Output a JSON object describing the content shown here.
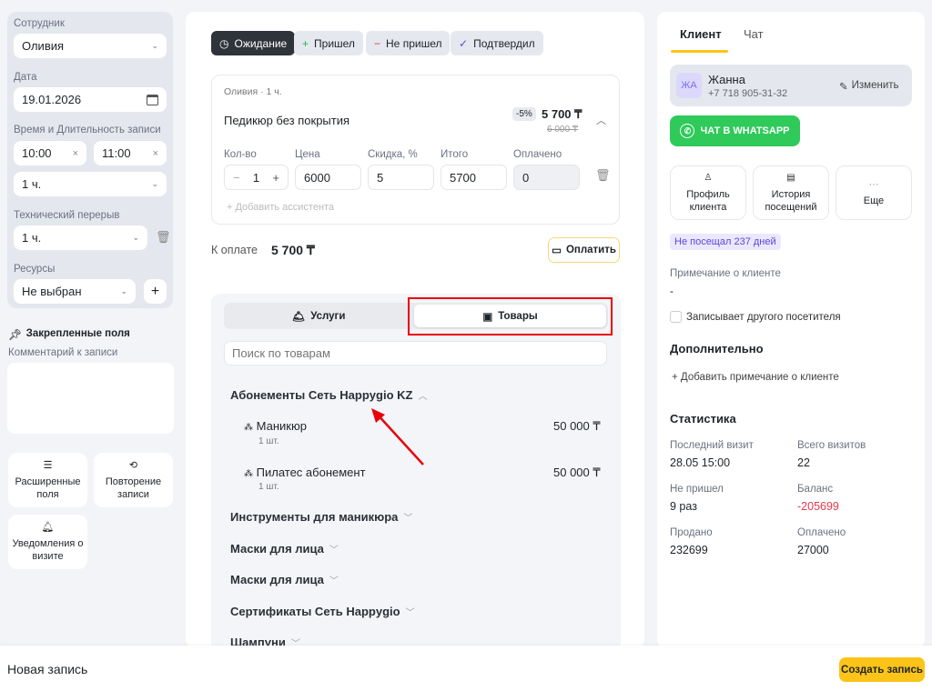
{
  "left": {
    "employee_label": "Сотрудник",
    "employee": "Оливия",
    "date_label": "Дата",
    "date": "19.01.2026",
    "time_label": "Время и Длительность записи",
    "time_start": "10:00",
    "time_end": "11:00",
    "duration": "1 ч.",
    "break_label": "Технический перерыв",
    "break": "1 ч.",
    "resources_label": "Ресурсы",
    "resources": "Не выбран",
    "pinned_label": "Закрепленные поля",
    "comment_label": "Комментарий к записи",
    "comment_value": "",
    "tiles": [
      {
        "label": "Расширенные поля",
        "icon": "list-icon"
      },
      {
        "label": "Повторение записи",
        "icon": "repeat-icon"
      },
      {
        "label": "Уведомления о визите",
        "icon": "bell-icon"
      }
    ]
  },
  "status": {
    "buttons": [
      {
        "label": "Ожидание",
        "icon": "clock-icon",
        "active": true
      },
      {
        "label": "Пришел",
        "icon": "plus-icon"
      },
      {
        "label": "Не пришел",
        "icon": "minus-icon"
      },
      {
        "label": "Подтвердил",
        "icon": "check-icon"
      }
    ]
  },
  "service": {
    "meta": "Оливия · 1 ч.",
    "name": "Педикюр без покрытия",
    "discount_badge": "-5%",
    "price": "5 700 ₸",
    "old_price": "6 000 ₸",
    "qty_label": "Кол-во",
    "qty": "1",
    "price_label": "Цена",
    "price_value": "6000",
    "discount_label": "Скидка, %",
    "discount_value": "5",
    "total_label": "Итого",
    "total_value": "5700",
    "paid_label": "Оплачено",
    "paid_value": "0",
    "add_assistant": "+ Добавить ассистента"
  },
  "payment": {
    "label": "К оплате",
    "amount": "5 700 ₸",
    "pay_button": "Оплатить"
  },
  "catalog": {
    "tabs": [
      {
        "label": "Услуги",
        "active": false
      },
      {
        "label": "Товары",
        "active": true
      }
    ],
    "search_placeholder": "Поиск по товарам",
    "categories": [
      {
        "name": "Абонементы Сеть Happygio KZ",
        "expanded": true,
        "items": [
          {
            "name": "Маникюр",
            "qty": "1 шт.",
            "price": "50 000 ₸"
          },
          {
            "name": "Пилатес абонемент",
            "qty": "1 шт.",
            "price": "50 000 ₸"
          }
        ]
      },
      {
        "name": "Инструменты для маникюра"
      },
      {
        "name": "Маски для лица"
      },
      {
        "name": "Маски для лица"
      },
      {
        "name": "Сертификаты Сеть Happygio"
      },
      {
        "name": "Шампуни"
      }
    ]
  },
  "client": {
    "tabs": [
      {
        "label": "Клиент",
        "active": true
      },
      {
        "label": "Чат"
      }
    ],
    "initials": "ЖА",
    "name": "Жанна",
    "phone": "+7 718 905-31-32",
    "edit": "Изменить",
    "whatsapp": "ЧАТ В WHATSAPP",
    "actions": [
      {
        "label": "Профиль клиента",
        "icon": "user-icon"
      },
      {
        "label": "История посещений",
        "icon": "history-icon"
      },
      {
        "label": "Еще",
        "icon": "more-icon"
      }
    ],
    "badge": "Не посещал 237 дней",
    "note_label": "Примечание о клиенте",
    "note": "-",
    "other_visitor": "Записывает другого посетителя",
    "extra_title": "Дополнительно",
    "add_note": "+ Добавить примечание о клиенте",
    "stats_title": "Статистика",
    "stats": [
      {
        "label": "Последний визит",
        "value": "28.05 15:00"
      },
      {
        "label": "Всего визитов",
        "value": "22"
      },
      {
        "label": "Не пришел",
        "value": "9 раз"
      },
      {
        "label": "Баланс",
        "value": "-205699"
      },
      {
        "label": "Продано",
        "value": "232699"
      },
      {
        "label": "Оплачено",
        "value": "27000"
      }
    ]
  },
  "footer": {
    "title": "Новая запись",
    "create": "Создать запись"
  },
  "colors": {
    "accent": "#fcc419",
    "whatsapp": "#2fca5a",
    "negative": "#e5394b",
    "badge_bg": "#ebe8fd",
    "badge_text": "#5b45e0",
    "highlight": "#e8000b"
  }
}
